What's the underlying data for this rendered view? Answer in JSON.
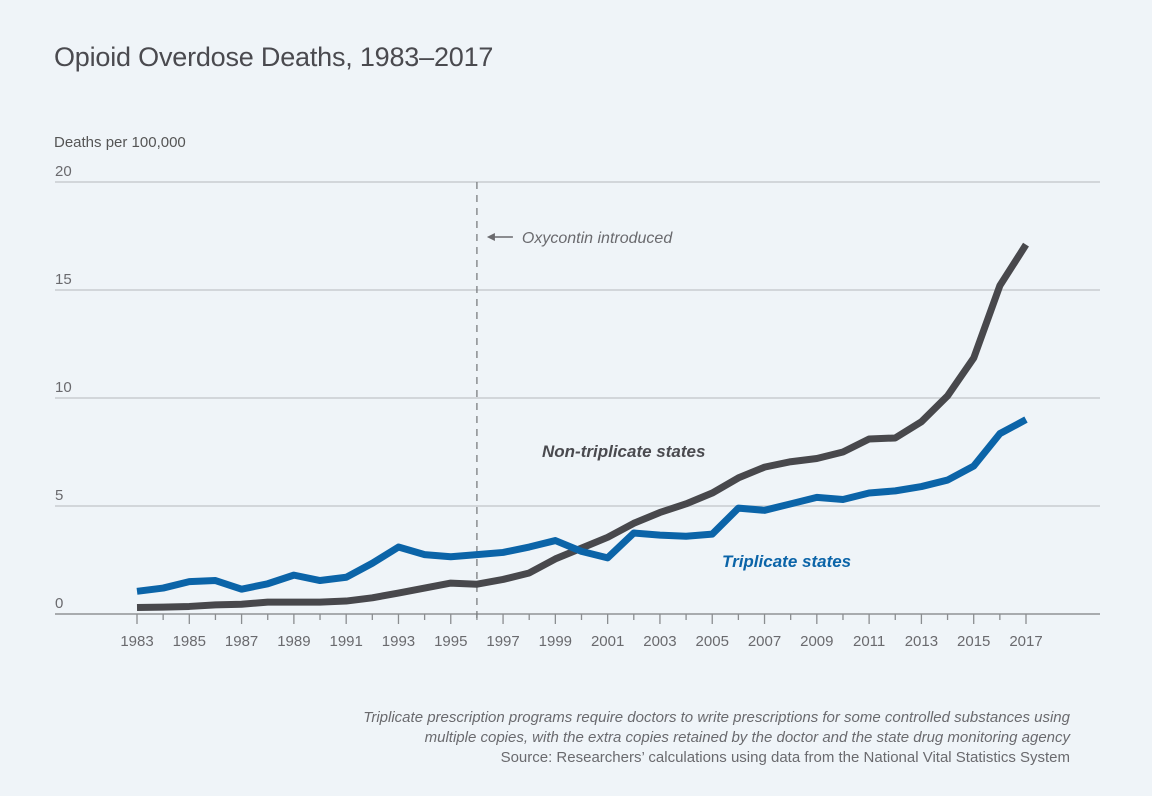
{
  "chart_data": {
    "type": "line",
    "title": "Opioid Overdose Deaths, 1983–2017",
    "ylabel": "Deaths per 100,000",
    "xlabel": "",
    "ylim": [
      0,
      20
    ],
    "xlim": [
      1983,
      2017
    ],
    "yticks": [
      0,
      5,
      10,
      15,
      20
    ],
    "xtick_labels": [
      "1983",
      "1985",
      "1987",
      "1989",
      "1991",
      "1993",
      "1995",
      "1997",
      "1999",
      "2001",
      "2003",
      "2005",
      "2007",
      "2009",
      "2011",
      "2013",
      "2015",
      "2017"
    ],
    "grid": true,
    "x": [
      1983,
      1984,
      1985,
      1986,
      1987,
      1988,
      1989,
      1990,
      1991,
      1992,
      1993,
      1994,
      1995,
      1996,
      1997,
      1998,
      1999,
      2000,
      2001,
      2002,
      2003,
      2004,
      2005,
      2006,
      2007,
      2008,
      2009,
      2010,
      2011,
      2012,
      2013,
      2014,
      2015,
      2016,
      2017
    ],
    "series": [
      {
        "name": "Non-triplicate states",
        "color": "#48484c",
        "values": [
          0.3,
          0.32,
          0.35,
          0.42,
          0.45,
          0.55,
          0.55,
          0.55,
          0.6,
          0.75,
          0.97,
          1.2,
          1.43,
          1.38,
          1.6,
          1.9,
          2.55,
          3.05,
          3.55,
          4.2,
          4.7,
          5.1,
          5.6,
          6.3,
          6.8,
          7.05,
          7.2,
          7.5,
          8.1,
          8.15,
          8.9,
          10.1,
          11.85,
          15.2,
          17.1
        ]
      },
      {
        "name": "Triplicate states",
        "color": "#0b64a8",
        "values": [
          1.05,
          1.2,
          1.5,
          1.55,
          1.15,
          1.4,
          1.8,
          1.55,
          1.7,
          2.35,
          3.1,
          2.75,
          2.65,
          2.75,
          2.85,
          3.1,
          3.4,
          2.9,
          2.6,
          3.75,
          3.65,
          3.6,
          3.7,
          4.9,
          4.8,
          5.1,
          5.4,
          5.3,
          5.6,
          5.7,
          5.9,
          6.2,
          6.85,
          8.35,
          9.0
        ]
      }
    ],
    "annotations": [
      {
        "text": "Oxycontin introduced",
        "x": 1996,
        "style": "dashed-vertical-line-with-arrow"
      }
    ]
  },
  "footnote": {
    "note_line1": "Triplicate prescription programs require doctors to write prescriptions for some controlled substances using",
    "note_line2": "multiple copies, with the extra copies retained by the doctor and the state drug monitoring agency",
    "source": "Source: Researchers’ calculations using data from the National Vital Statistics System"
  },
  "colors": {
    "background": "#eff4f8",
    "gridline": "#c8ccd0",
    "axis": "#a8abae",
    "non_triplicate": "#48484c",
    "triplicate": "#0b64a8"
  }
}
